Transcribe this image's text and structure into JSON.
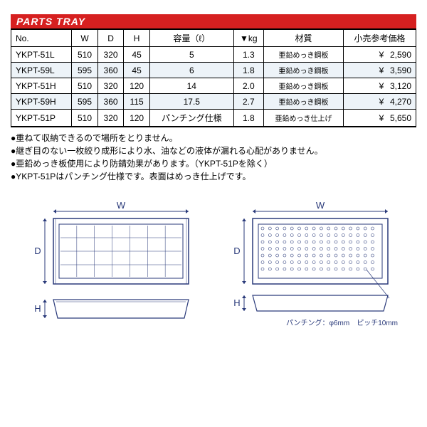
{
  "title": "PARTS TRAY",
  "columns": [
    "No.",
    "W",
    "D",
    "H",
    "容量（ℓ）",
    "▼kg",
    "材質",
    "小売参考価格"
  ],
  "rows": [
    {
      "no": "YKPT-51L",
      "w": "510",
      "d": "320",
      "h": "45",
      "cap": "5",
      "kg": "1.3",
      "mat": "亜鉛めっき鋼板",
      "price": "2,590",
      "shade": false
    },
    {
      "no": "YKPT-59L",
      "w": "595",
      "d": "360",
      "h": "45",
      "cap": "6",
      "kg": "1.8",
      "mat": "亜鉛めっき鋼板",
      "price": "3,590",
      "shade": true
    },
    {
      "no": "YKPT-51H",
      "w": "510",
      "d": "320",
      "h": "120",
      "cap": "14",
      "kg": "2.0",
      "mat": "亜鉛めっき鋼板",
      "price": "3,120",
      "shade": false
    },
    {
      "no": "YKPT-59H",
      "w": "595",
      "d": "360",
      "h": "115",
      "cap": "17.5",
      "kg": "2.7",
      "mat": "亜鉛めっき鋼板",
      "price": "4,270",
      "shade": true
    },
    {
      "no": "YKPT-51P",
      "w": "510",
      "d": "320",
      "h": "120",
      "cap": "パンチング仕様",
      "kg": "1.8",
      "mat": "亜鉛めっき仕上げ",
      "price": "5,650",
      "shade": false
    }
  ],
  "notes": [
    "●重ねて収納できるので場所をとりません。",
    "●継ぎ目のない一枚絞り成形により水、油などの液体が漏れる心配がありません。",
    "●亜鉛めっき板使用により防錆効果があります。（YKPT-51Pを除く）",
    "●YKPT-51Pはパンチング仕様です。表面はめっき仕上げです。"
  ],
  "diag": {
    "label_w": "W",
    "label_d": "D",
    "label_h": "H",
    "punch_caption": "パンチング：φ6mm　ピッチ10mm",
    "stroke": "#2a3a7a"
  },
  "yen": "¥"
}
